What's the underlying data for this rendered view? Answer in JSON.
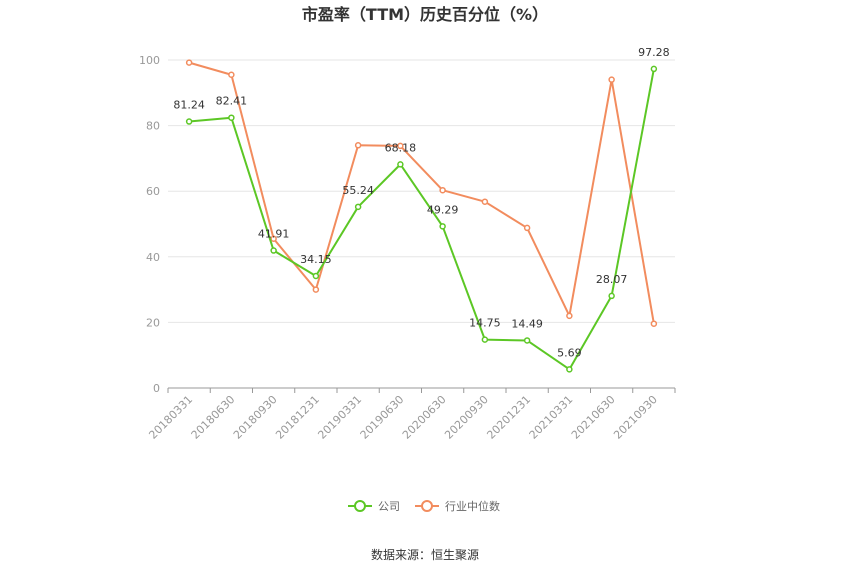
{
  "chart_data": {
    "type": "line",
    "title": "市盈率（TTM）历史百分位（%）",
    "categories": [
      "20180331",
      "20180630",
      "20180930",
      "20181231",
      "20190331",
      "20190630",
      "20200630",
      "20200930",
      "20201231",
      "20210331",
      "20210630",
      "20210930"
    ],
    "ylim": [
      0,
      100
    ],
    "yticks": [
      0,
      20,
      40,
      60,
      80,
      100
    ],
    "grid": true,
    "legend_position": "bottom",
    "series": [
      {
        "name": "公司",
        "color": "#5cc725",
        "values": [
          81.24,
          82.41,
          41.91,
          34.15,
          55.24,
          68.18,
          49.29,
          14.75,
          14.49,
          5.69,
          28.07,
          97.28
        ],
        "labels": [
          "81.24",
          "82.41",
          "41.91",
          "34.15",
          "55.24",
          "68.18",
          "49.29",
          "14.75",
          "14.49",
          "5.69",
          "28.07",
          "97.28"
        ]
      },
      {
        "name": "行业中位数",
        "color": "#f28c5e",
        "values": [
          99.2,
          95.5,
          45.5,
          30.0,
          74.0,
          73.8,
          60.3,
          56.8,
          48.8,
          22.0,
          94.0,
          19.6
        ]
      }
    ],
    "source": "数据来源：恒生聚源"
  }
}
